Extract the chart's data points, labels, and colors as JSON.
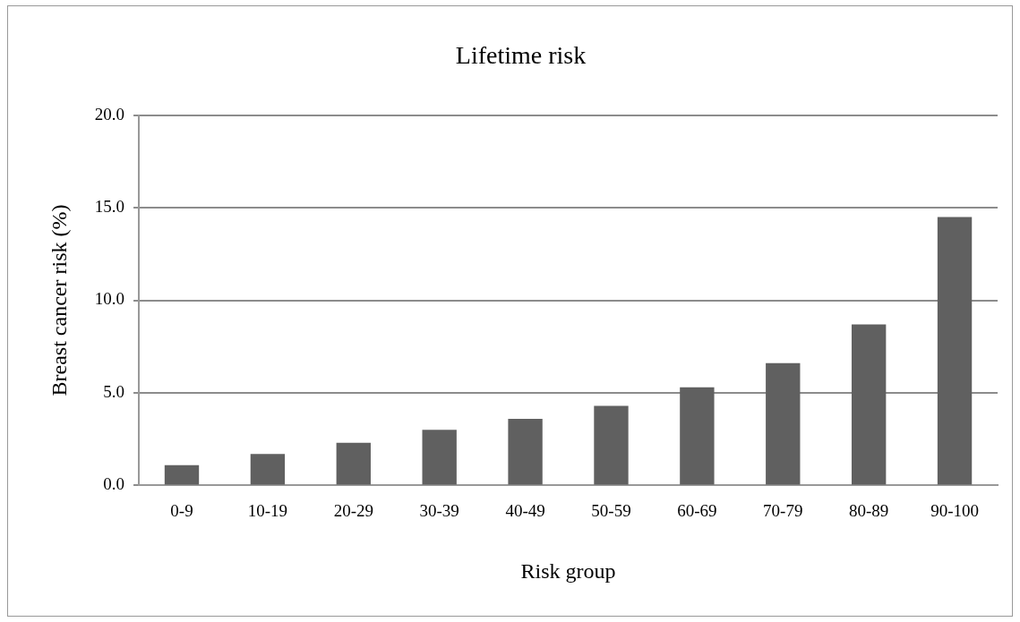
{
  "chart_data": {
    "type": "bar",
    "title": "Lifetime risk",
    "xlabel": "Risk group",
    "ylabel": "Breast cancer risk (%)",
    "categories": [
      "0-9",
      "10-19",
      "20-29",
      "30-39",
      "40-49",
      "50-59",
      "60-69",
      "70-79",
      "80-89",
      "90-100"
    ],
    "values": [
      1.1,
      1.7,
      2.3,
      3.0,
      3.6,
      4.3,
      5.3,
      6.6,
      8.7,
      14.5
    ],
    "color": "#606060",
    "ylim": [
      0,
      20
    ],
    "yticks": [
      {
        "value": 0,
        "label": "0.0"
      },
      {
        "value": 5,
        "label": "5.0"
      },
      {
        "value": 10,
        "label": "10.0"
      },
      {
        "value": 15,
        "label": "15.0"
      },
      {
        "value": 20,
        "label": "20.0"
      }
    ],
    "grid": "y",
    "legend": false
  }
}
